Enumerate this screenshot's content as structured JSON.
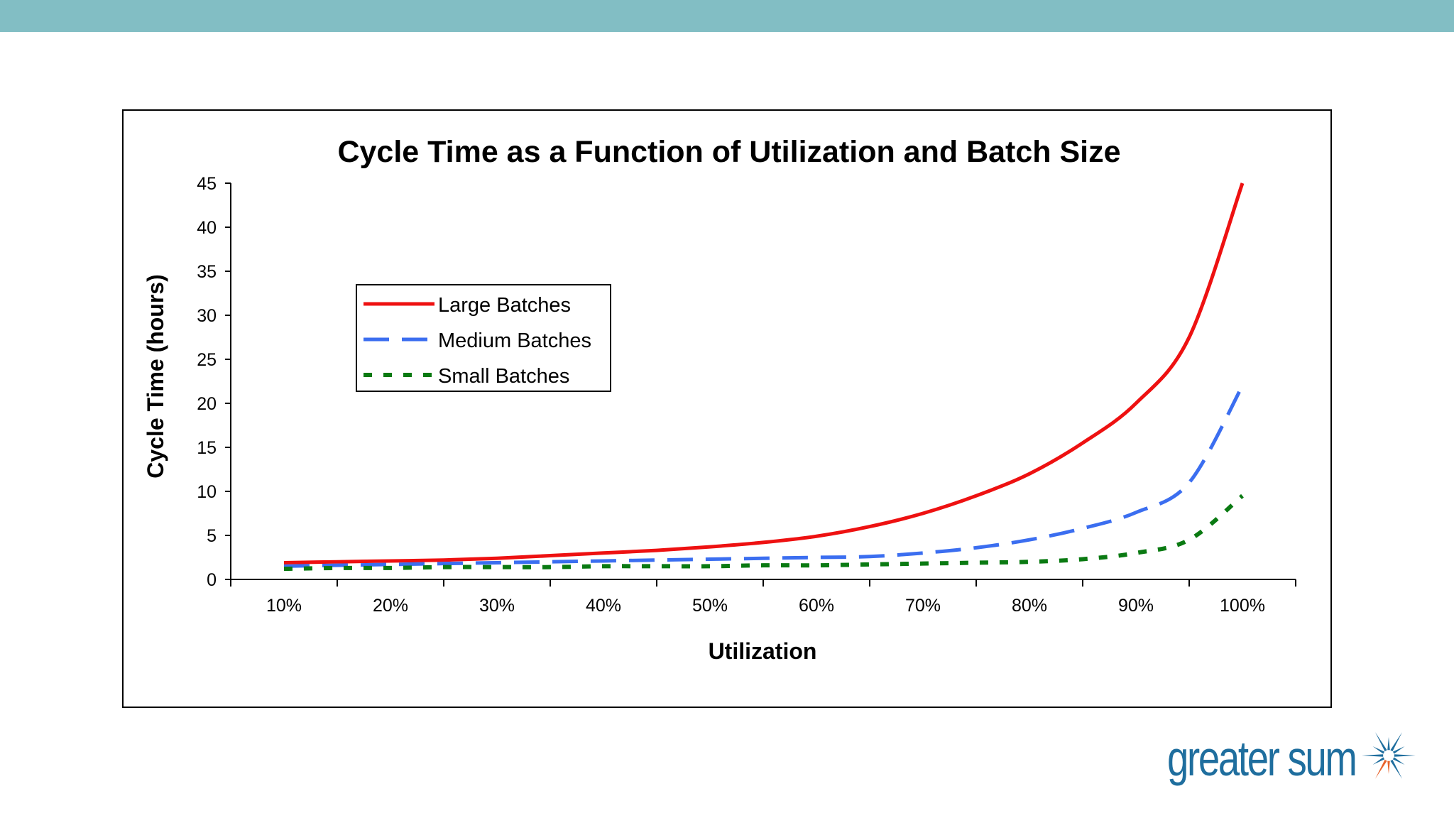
{
  "colors": {
    "top_band": "#82bec4",
    "brand": "#1f6e9e",
    "brand_accent": "#e8632b",
    "large": "#ee1111",
    "medium": "#3b6ef0",
    "small": "#0a7a12"
  },
  "brand": {
    "name": "greater sum",
    "icon": "sunburst-logo-icon"
  },
  "chart_data": {
    "type": "line",
    "title": "Cycle Time as a Function of Utilization and Batch Size",
    "xlabel": "Utilization",
    "ylabel": "Cycle Time (hours)",
    "categories": [
      "10%",
      "20%",
      "30%",
      "40%",
      "50%",
      "60%",
      "70%",
      "80%",
      "90%",
      "100%"
    ],
    "x": [
      10,
      15,
      20,
      25,
      30,
      35,
      40,
      45,
      50,
      55,
      60,
      65,
      70,
      75,
      80,
      85,
      90,
      95,
      100
    ],
    "ylim": [
      0,
      45
    ],
    "yticks": [
      0,
      5,
      10,
      15,
      20,
      25,
      30,
      35,
      40,
      45
    ],
    "grid": false,
    "legend_position": "upper-left",
    "series": [
      {
        "name": "Large Batches",
        "style": "solid",
        "color": "#ee1111",
        "values": [
          1.9,
          2.0,
          2.1,
          2.2,
          2.4,
          2.7,
          3.0,
          3.3,
          3.7,
          4.2,
          4.9,
          6.0,
          7.5,
          9.5,
          12.0,
          15.5,
          20.0,
          27.5,
          45.0
        ]
      },
      {
        "name": "Medium Batches",
        "style": "dashed",
        "color": "#3b6ef0",
        "values": [
          1.5,
          1.6,
          1.7,
          1.8,
          1.9,
          2.0,
          2.1,
          2.2,
          2.3,
          2.4,
          2.5,
          2.6,
          3.0,
          3.6,
          4.5,
          5.8,
          7.6,
          11.0,
          22.0
        ]
      },
      {
        "name": "Small Batches",
        "style": "dotted",
        "color": "#0a7a12",
        "values": [
          1.2,
          1.3,
          1.3,
          1.4,
          1.4,
          1.4,
          1.5,
          1.5,
          1.5,
          1.6,
          1.6,
          1.7,
          1.8,
          1.9,
          2.0,
          2.3,
          3.0,
          4.5,
          9.5
        ]
      }
    ]
  }
}
